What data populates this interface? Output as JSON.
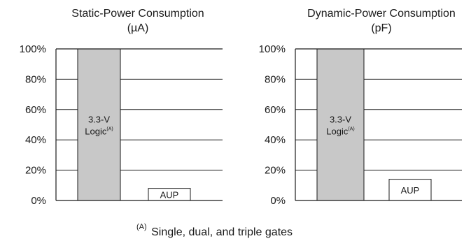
{
  "chart_data": [
    {
      "type": "bar",
      "title": "Static-Power Consumption",
      "unit": "(µA)",
      "categories": [
        "3.3-V Logic",
        "AUP"
      ],
      "values": [
        100,
        8
      ],
      "ylim": [
        0,
        100
      ],
      "yticks": [
        "0%",
        "20%",
        "40%",
        "60%",
        "80%",
        "100%"
      ],
      "grid": true,
      "bar_labels": [
        {
          "lines": [
            "3.3-V",
            "Logic"
          ],
          "sup": "(A)"
        },
        {
          "lines": [
            "AUP"
          ],
          "sup": ""
        }
      ],
      "colors": [
        "#c8c8c8",
        "#ffffff"
      ]
    },
    {
      "type": "bar",
      "title": "Dynamic-Power Consumption",
      "unit": "(pF)",
      "categories": [
        "3.3-V Logic",
        "AUP"
      ],
      "values": [
        100,
        14
      ],
      "ylim": [
        0,
        100
      ],
      "yticks": [
        "0%",
        "20%",
        "40%",
        "60%",
        "80%",
        "100%"
      ],
      "grid": true,
      "bar_labels": [
        {
          "lines": [
            "3.3-V",
            "Logic"
          ],
          "sup": "(A)"
        },
        {
          "lines": [
            "AUP"
          ],
          "sup": ""
        }
      ],
      "colors": [
        "#c8c8c8",
        "#ffffff"
      ]
    }
  ],
  "footnote": {
    "mark": "(A)",
    "text": "Single, dual, and triple gates"
  }
}
